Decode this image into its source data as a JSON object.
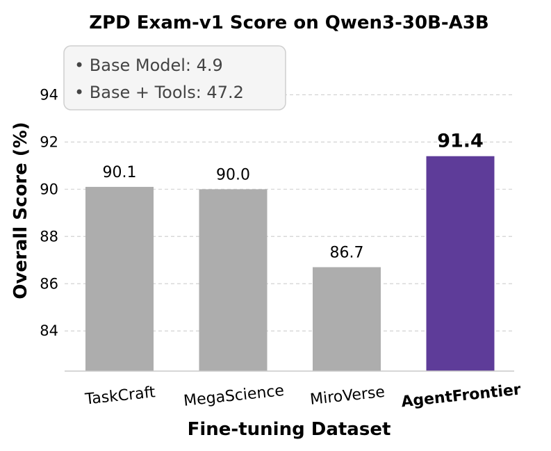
{
  "chart_data": {
    "type": "bar",
    "title": "ZPD Exam-v1 Score on Qwen3-30B-A3B",
    "xlabel": "Fine-tuning Dataset",
    "ylabel": "Overall Score (%)",
    "categories": [
      "TaskCraft",
      "MegaScience",
      "MiroVerse",
      "AgentFrontier"
    ],
    "values": [
      90.1,
      90.0,
      86.7,
      91.4
    ],
    "value_labels": [
      "90.1",
      "90.0",
      "86.7",
      "91.4"
    ],
    "highlight_index": 3,
    "colors": {
      "default": "#adadad",
      "highlight": "#5e3c99"
    },
    "ylim": [
      82.3,
      95.6
    ],
    "yticks": [
      84,
      86,
      88,
      90,
      92,
      94
    ],
    "ytick_labels": [
      "84",
      "86",
      "88",
      "90",
      "92",
      "94"
    ],
    "grid": "y-dashed",
    "annotation": {
      "lines": [
        "• Base Model: 4.9",
        "• Base + Tools: 47.2"
      ]
    }
  }
}
